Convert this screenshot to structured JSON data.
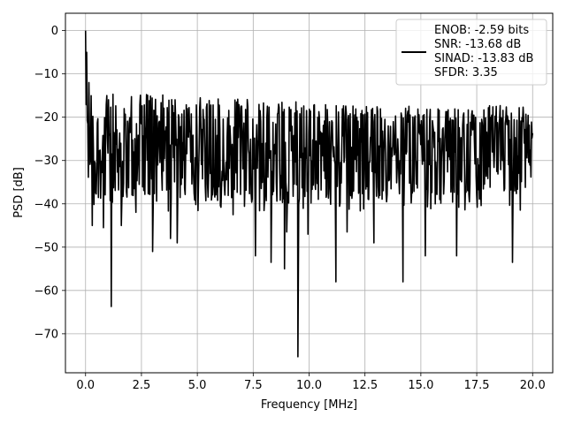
{
  "chart_data": {
    "type": "line",
    "title": "",
    "xlabel": "Frequency [MHz]",
    "ylabel": "PSD [dB]",
    "xlim": [
      -0.9,
      20.9
    ],
    "ylim": [
      -79,
      4
    ],
    "grid": true,
    "xticks": [
      0.0,
      2.5,
      5.0,
      7.5,
      10.0,
      12.5,
      15.0,
      17.5,
      20.0
    ],
    "xtick_labels": [
      "0.0",
      "2.5",
      "5.0",
      "7.5",
      "10.0",
      "12.5",
      "15.0",
      "17.5",
      "20.0"
    ],
    "yticks": [
      0,
      -10,
      -20,
      -30,
      -40,
      -50,
      -60,
      -70
    ],
    "ytick_labels": [
      "0",
      "−10",
      "−20",
      "−30",
      "−40",
      "−50",
      "−60",
      "−70"
    ],
    "legend": {
      "location": "top-right",
      "entries": [
        "ENOB: -2.59 bits",
        "SNR: -13.68 dB",
        "SINAD: -13.83 dB",
        "SFDR: 3.35"
      ]
    },
    "series": [
      {
        "color": "#000000",
        "x_range": [
          0,
          20
        ],
        "n_points": 800,
        "noise_floor_db": -28,
        "notable_points": [
          {
            "x": 0.0,
            "y": 0.0
          },
          {
            "x": 0.05,
            "y": -5.0
          },
          {
            "x": 0.15,
            "y": -12.0
          },
          {
            "x": 0.3,
            "y": -45.0
          },
          {
            "x": 0.8,
            "y": -45.5
          },
          {
            "x": 1.15,
            "y": -63.7
          },
          {
            "x": 1.6,
            "y": -45.0
          },
          {
            "x": 2.4,
            "y": -35.5
          },
          {
            "x": 3.0,
            "y": -51.0
          },
          {
            "x": 3.8,
            "y": -48.0
          },
          {
            "x": 4.1,
            "y": -49.0
          },
          {
            "x": 6.6,
            "y": -42.5
          },
          {
            "x": 7.6,
            "y": -52.0
          },
          {
            "x": 8.3,
            "y": -53.5
          },
          {
            "x": 8.9,
            "y": -55.0
          },
          {
            "x": 9.0,
            "y": -46.5
          },
          {
            "x": 9.5,
            "y": -75.3
          },
          {
            "x": 9.95,
            "y": -47.0
          },
          {
            "x": 11.2,
            "y": -58.0
          },
          {
            "x": 11.7,
            "y": -46.5
          },
          {
            "x": 12.9,
            "y": -49.0
          },
          {
            "x": 14.2,
            "y": -58.0
          },
          {
            "x": 15.2,
            "y": -52.0
          },
          {
            "x": 16.6,
            "y": -52.0
          },
          {
            "x": 19.1,
            "y": -53.5
          }
        ]
      }
    ]
  }
}
